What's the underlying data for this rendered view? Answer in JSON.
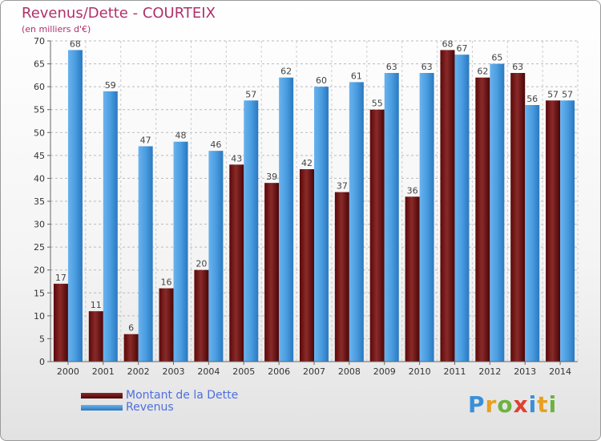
{
  "title": "Revenus/Dette - COURTEIX",
  "subtitle": "(en milliers d'€)",
  "brand": {
    "name": "Proxiti",
    "letters": [
      {
        "ch": "P",
        "color": "#3a8fd8"
      },
      {
        "ch": "r",
        "color": "#e8a020"
      },
      {
        "ch": "o",
        "color": "#6cb33f"
      },
      {
        "ch": "x",
        "color": "#e04030"
      },
      {
        "ch": "i",
        "color": "#3a8fd8"
      },
      {
        "ch": "t",
        "color": "#e8a020"
      },
      {
        "ch": "i",
        "color": "#6cb33f"
      }
    ]
  },
  "legend": {
    "placement": "bottom-left",
    "items": [
      {
        "label": "Montant de la Dette",
        "color": "#6e0d0d"
      },
      {
        "label": "Revenus",
        "color": "#3d8fd8"
      }
    ]
  },
  "chart_data": {
    "type": "bar",
    "title": "Revenus/Dette - COURTEIX",
    "subtitle": "(en milliers d'€)",
    "xlabel": "",
    "ylabel": "",
    "ylim": [
      0,
      70
    ],
    "yticks": [
      0,
      5,
      10,
      15,
      20,
      25,
      30,
      35,
      40,
      45,
      50,
      55,
      60,
      65,
      70
    ],
    "grid": true,
    "categories": [
      "2000",
      "2001",
      "2002",
      "2003",
      "2004",
      "2005",
      "2006",
      "2007",
      "2008",
      "2009",
      "2010",
      "2011",
      "2012",
      "2013",
      "2014"
    ],
    "series": [
      {
        "name": "Montant de la Dette",
        "color": "#7a1a1a",
        "values": [
          17,
          11,
          6,
          16,
          20,
          43,
          39,
          42,
          37,
          55,
          36,
          68,
          62,
          63,
          57
        ]
      },
      {
        "name": "Revenus",
        "color": "#3d8fd8",
        "values": [
          68,
          59,
          47,
          48,
          46,
          57,
          62,
          60,
          61,
          63,
          63,
          67,
          65,
          56,
          57
        ]
      }
    ]
  }
}
